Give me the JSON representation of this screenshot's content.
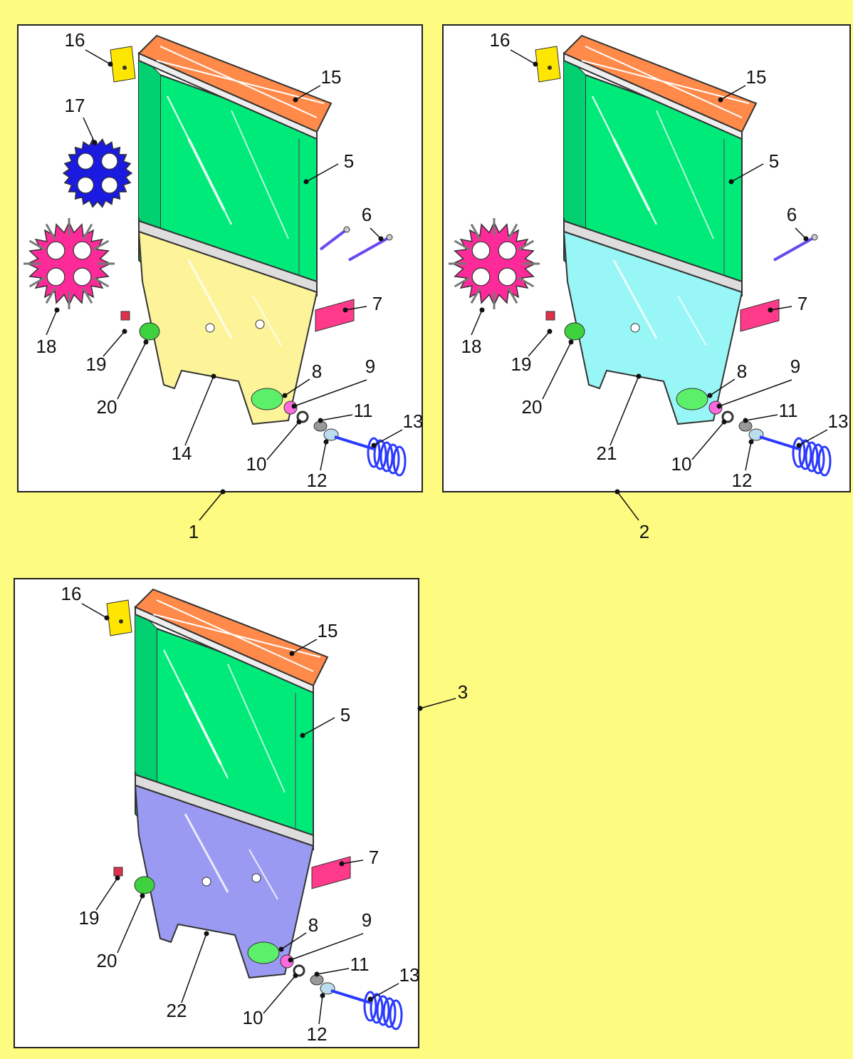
{
  "colors": {
    "background": "#fdfb80",
    "panel": "#ffffff",
    "container": "#00ea7a",
    "lid": "#ff8a4a",
    "hopper_1": "#fdf49a",
    "hopper_2": "#98f6f6",
    "hopper_3": "#9a9af2",
    "gear_blue": "#1a1ae0",
    "gear_pink": "#ff2a9a",
    "bracket": "#ffe600",
    "label_plate": "#ff3a8a",
    "auger": "#2a3aff"
  },
  "icons": [
    "container-icon",
    "lid-icon",
    "hopper-icon",
    "gear-icon",
    "bracket-icon",
    "screw-icon",
    "spring-auger-icon",
    "bushing-icon",
    "washer-icon",
    "label-plate-icon"
  ],
  "assemblies": [
    {
      "number": "1",
      "hopper_color": "#fdf49a",
      "labels": {
        "16": "16",
        "15": "15",
        "17": "17",
        "5": "5",
        "6": "6",
        "7": "7",
        "18": "18",
        "19": "19",
        "20": "20",
        "8": "8",
        "9": "9",
        "11": "11",
        "13": "13",
        "hopper": "14",
        "10": "10",
        "12": "12"
      }
    },
    {
      "number": "2",
      "hopper_color": "#98f6f6",
      "labels": {
        "16": "16",
        "15": "15",
        "5": "5",
        "6": "6",
        "7": "7",
        "18": "18",
        "19": "19",
        "20": "20",
        "8": "8",
        "9": "9",
        "11": "11",
        "13": "13",
        "hopper": "21",
        "10": "10",
        "12": "12"
      }
    },
    {
      "number": "3",
      "hopper_color": "#9a9af2",
      "labels": {
        "16": "16",
        "15": "15",
        "5": "5",
        "7": "7",
        "19": "19",
        "20": "20",
        "8": "8",
        "9": "9",
        "11": "11",
        "13": "13",
        "hopper": "22",
        "10": "10",
        "12": "12"
      }
    }
  ]
}
